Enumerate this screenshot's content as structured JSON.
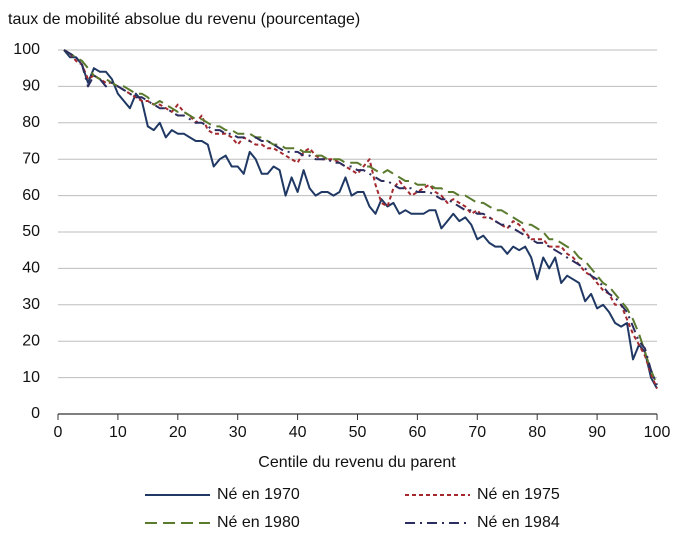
{
  "chart_data": {
    "type": "line",
    "y_label": "taux de mobilité absolue du revenu (pourcentage)",
    "x_label": "Centile du revenu du parent",
    "x": [
      1,
      2,
      3,
      4,
      5,
      6,
      7,
      8,
      9,
      10,
      11,
      12,
      13,
      14,
      15,
      16,
      17,
      18,
      19,
      20,
      21,
      22,
      23,
      24,
      25,
      26,
      27,
      28,
      29,
      30,
      31,
      32,
      33,
      34,
      35,
      36,
      37,
      38,
      39,
      40,
      41,
      42,
      43,
      44,
      45,
      46,
      47,
      48,
      49,
      50,
      51,
      52,
      53,
      54,
      55,
      56,
      57,
      58,
      59,
      60,
      61,
      62,
      63,
      64,
      65,
      66,
      67,
      68,
      69,
      70,
      71,
      72,
      73,
      74,
      75,
      76,
      77,
      78,
      79,
      80,
      81,
      82,
      83,
      84,
      85,
      86,
      87,
      88,
      89,
      90,
      91,
      92,
      93,
      94,
      95,
      96,
      97,
      98,
      99,
      100
    ],
    "series": [
      {
        "name": "Né en 1970",
        "color": "#1f3864",
        "style": "solid",
        "values": [
          100,
          98,
          98,
          96,
          91,
          95,
          94,
          94,
          92,
          88,
          86,
          84,
          88,
          86,
          79,
          78,
          80,
          76,
          78,
          77,
          77,
          76,
          75,
          75,
          74,
          68,
          70,
          71,
          68,
          68,
          66,
          72,
          70,
          66,
          66,
          68,
          67,
          60,
          65,
          61,
          67,
          62,
          60,
          61,
          61,
          60,
          61,
          65,
          60,
          61,
          61,
          57,
          55,
          59,
          57,
          58,
          55,
          56,
          55,
          55,
          55,
          56,
          56,
          51,
          53,
          55,
          53,
          54,
          52,
          48,
          49,
          47,
          46,
          46,
          44,
          46,
          45,
          46,
          43,
          37,
          43,
          40,
          43,
          36,
          38,
          37,
          36,
          31,
          33,
          29,
          30,
          28,
          25,
          24,
          25,
          15,
          19,
          17,
          10,
          7
        ]
      },
      {
        "name": "Né en 1975",
        "color": "#a3292e",
        "style": "dotted",
        "values": [
          100,
          99,
          97,
          96,
          92,
          93,
          92,
          91,
          91,
          90,
          89,
          88,
          87,
          86,
          86,
          85,
          85,
          84,
          83,
          85,
          83,
          82,
          80,
          82,
          78,
          77,
          77,
          77,
          76,
          74,
          76,
          75,
          74,
          74,
          73,
          73,
          72,
          71,
          70,
          69,
          72,
          73,
          71,
          70,
          70,
          70,
          69,
          68,
          67,
          66,
          68,
          70,
          63,
          58,
          57,
          62,
          64,
          62,
          60,
          61,
          62,
          63,
          61,
          60,
          58,
          59,
          58,
          57,
          55,
          56,
          54,
          54,
          53,
          52,
          51,
          53,
          52,
          50,
          48,
          48,
          48,
          46,
          46,
          46,
          44,
          43,
          41,
          39,
          38,
          36,
          34,
          33,
          30,
          30,
          26,
          22,
          19,
          16,
          11,
          7
        ]
      },
      {
        "name": "Né en 1980",
        "color": "#5a7a2e",
        "style": "dashed",
        "values": [
          100,
          99,
          98,
          97,
          95,
          93,
          92,
          92,
          91,
          90,
          90,
          89,
          88,
          88,
          87,
          85,
          86,
          85,
          84,
          83,
          83,
          82,
          81,
          81,
          80,
          79,
          79,
          78,
          78,
          77,
          77,
          77,
          76,
          76,
          75,
          74,
          74,
          73,
          73,
          73,
          72,
          72,
          71,
          71,
          70,
          70,
          70,
          69,
          69,
          69,
          68,
          68,
          67,
          66,
          67,
          66,
          65,
          64,
          64,
          63,
          63,
          63,
          62,
          62,
          61,
          61,
          60,
          60,
          59,
          58,
          58,
          57,
          56,
          56,
          55,
          54,
          53,
          52,
          52,
          51,
          50,
          48,
          48,
          47,
          46,
          45,
          43,
          42,
          40,
          38,
          36,
          35,
          33,
          31,
          29,
          26,
          22,
          17,
          12,
          8
        ]
      },
      {
        "name": "Né en 1984",
        "color": "#2b2d5e",
        "style": "dashdot",
        "values": [
          100,
          99,
          98,
          96,
          90,
          93,
          92,
          90,
          91,
          90,
          89,
          88,
          87,
          87,
          86,
          85,
          84,
          84,
          83,
          82,
          82,
          81,
          80,
          80,
          79,
          78,
          78,
          77,
          77,
          76,
          76,
          75,
          76,
          75,
          75,
          74,
          73,
          72,
          72,
          72,
          71,
          71,
          70,
          70,
          70,
          69,
          69,
          68,
          68,
          67,
          67,
          66,
          65,
          64,
          64,
          63,
          62,
          62,
          62,
          61,
          61,
          61,
          60,
          59,
          59,
          58,
          57,
          56,
          56,
          55,
          55,
          54,
          53,
          52,
          52,
          51,
          50,
          49,
          48,
          47,
          47,
          46,
          45,
          44,
          43,
          42,
          41,
          40,
          38,
          37,
          35,
          33,
          32,
          30,
          28,
          24,
          20,
          18,
          12,
          8
        ]
      }
    ],
    "xlim": [
      0,
      100
    ],
    "xticks": [
      0,
      10,
      20,
      30,
      40,
      50,
      60,
      70,
      80,
      90,
      100
    ],
    "ylim": [
      0,
      100
    ],
    "yticks": [
      0,
      10,
      20,
      30,
      40,
      50,
      60,
      70,
      80,
      90,
      100
    ],
    "grid": true,
    "legend": "bottom"
  }
}
